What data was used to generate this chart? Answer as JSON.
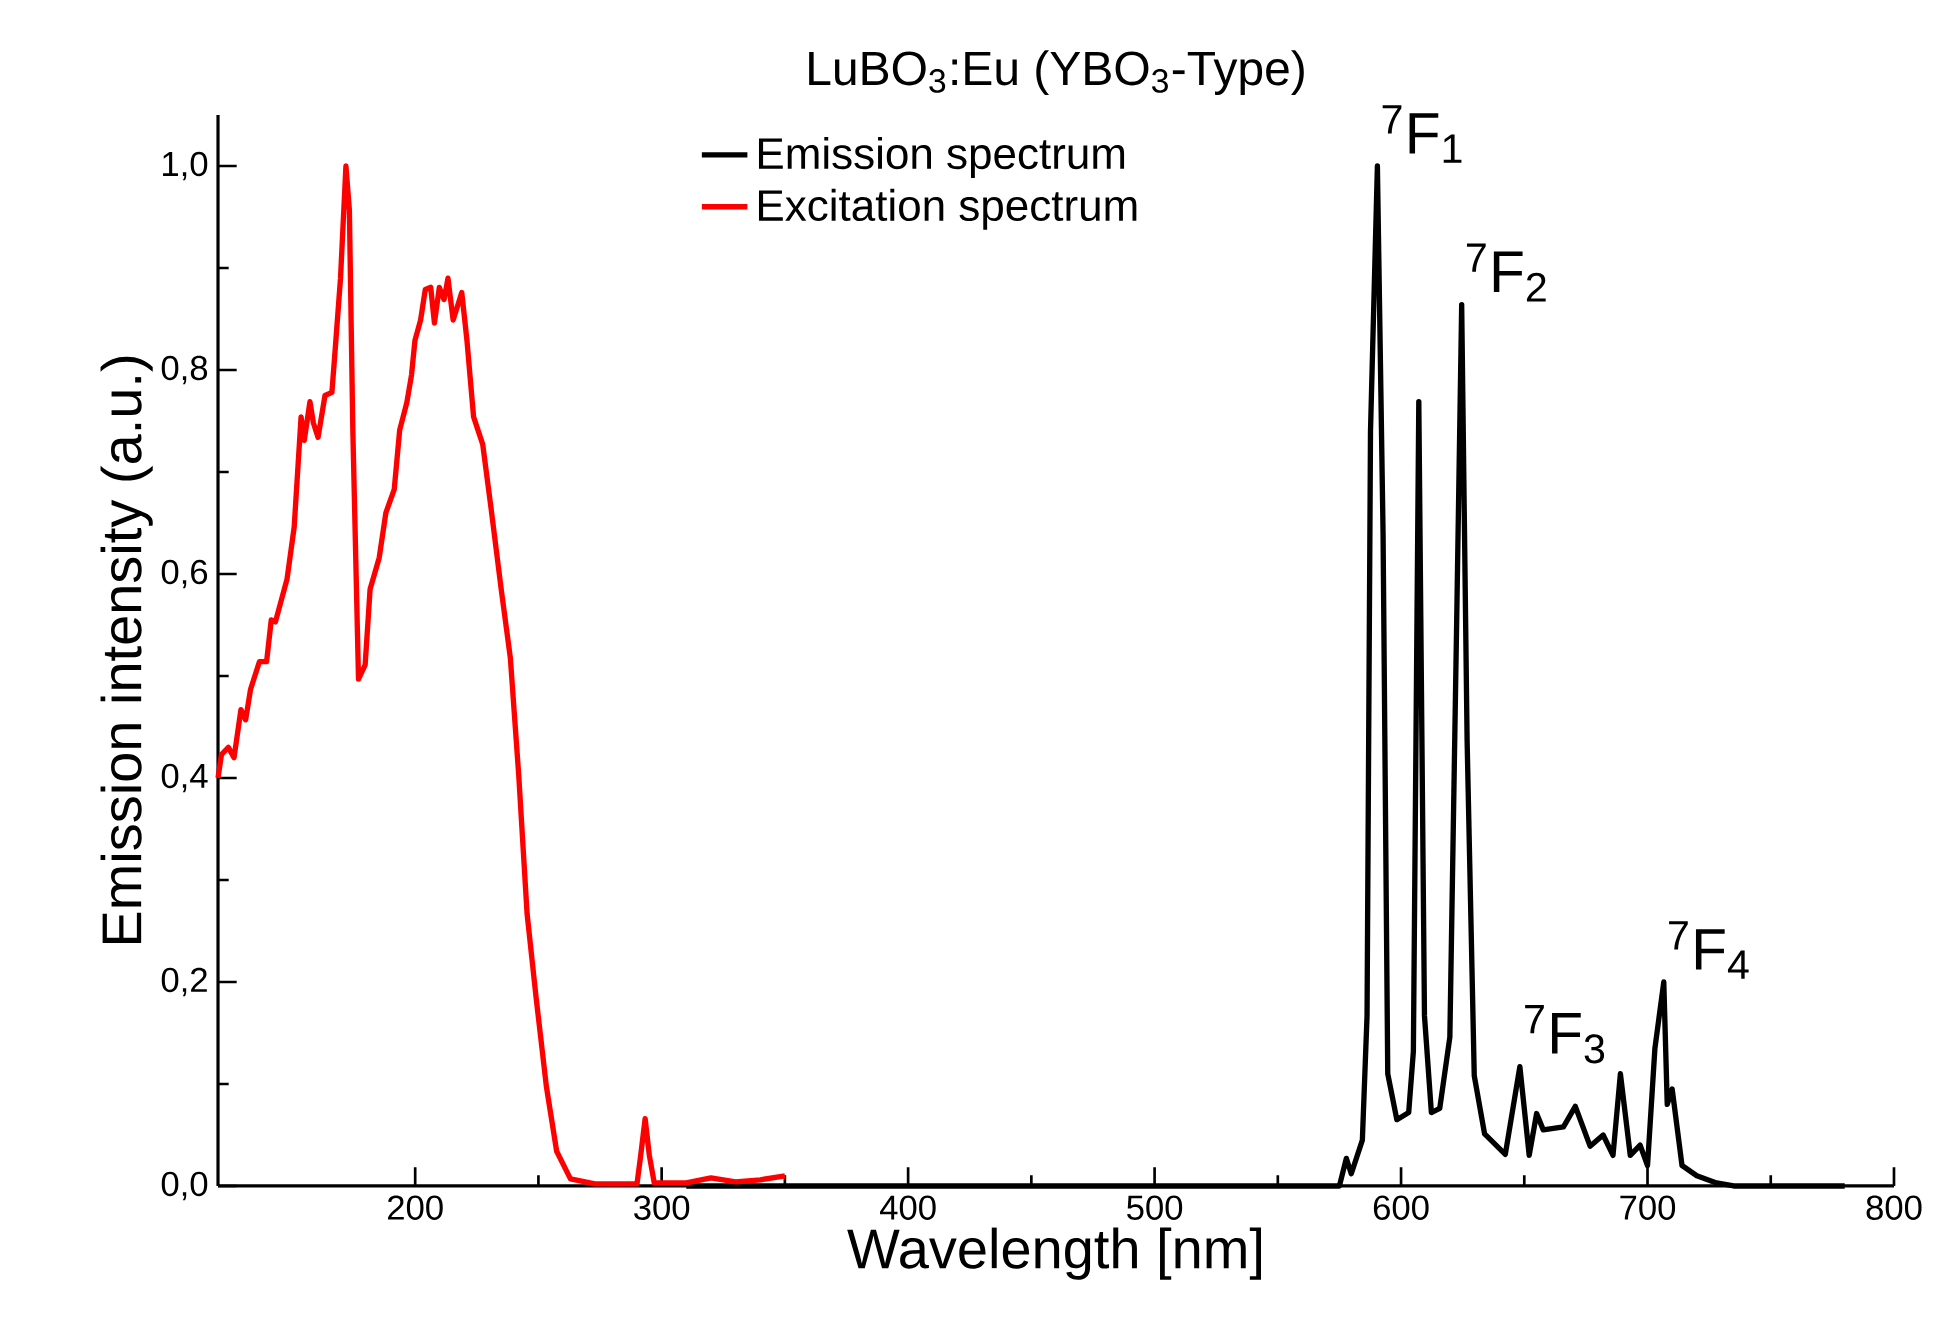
{
  "chart_data": {
    "type": "line",
    "title": "LuBO$_{3}$:Eu (YBO$_{3}$-Type)",
    "xlabel": "Wavelength [nm]",
    "ylabel": "Emission intensity (a.u.)",
    "xlim": [
      120,
      800
    ],
    "ylim": [
      0,
      1.05
    ],
    "xticks": [
      200,
      300,
      400,
      500,
      600,
      700,
      800
    ],
    "yticks": [
      {
        "value": 0,
        "label": "0,0"
      },
      {
        "value": 0.2,
        "label": "0,2"
      },
      {
        "value": 0.4,
        "label": "0,4"
      },
      {
        "value": 0.6,
        "label": "0,6"
      },
      {
        "value": 0.8,
        "label": "0,8"
      },
      {
        "value": 1.0,
        "label": "1,0"
      }
    ],
    "legend": "top",
    "grid": false,
    "marker": "none",
    "line_style": "solid",
    "series": [
      {
        "name": "Emission spectrum",
        "color": "#000000",
        "x": [
          310,
          575,
          577.8,
          579.8,
          584.3,
          586.2,
          587.6,
          590.4,
          592.7,
          594.6,
          598.3,
          603.1,
          605,
          607.2,
          609.5,
          612.3,
          615.7,
          619.8,
          622.7,
          624.6,
          626.8,
          629.7,
          633.9,
          642.3,
          648.2,
          652,
          655,
          657.7,
          665.9,
          670.7,
          676.7,
          682,
          686,
          689,
          693,
          697,
          700,
          703,
          706.6,
          708,
          710,
          714,
          720,
          728,
          735,
          780
        ],
        "values": [
          0,
          0,
          0.027,
          0.012,
          0.045,
          0.167,
          0.74,
          1.0,
          0.64,
          0.11,
          0.065,
          0.072,
          0.132,
          0.769,
          0.167,
          0.072,
          0.076,
          0.146,
          0.573,
          0.864,
          0.437,
          0.108,
          0.051,
          0.031,
          0.117,
          0.03,
          0.071,
          0.055,
          0.058,
          0.078,
          0.039,
          0.05,
          0.03,
          0.11,
          0.03,
          0.04,
          0.02,
          0.135,
          0.2,
          0.08,
          0.095,
          0.02,
          0.01,
          0.003,
          0,
          0
        ]
      },
      {
        "name": "Excitation spectrum",
        "color": "#ff0000",
        "x": [
          120,
          121.4,
          124.2,
          126.5,
          129.3,
          131.2,
          133.2,
          136.8,
          139.7,
          141.6,
          143.3,
          148,
          150.9,
          153.7,
          155,
          157.3,
          158.7,
          160.6,
          163.4,
          166.2,
          167.6,
          169.7,
          171.9,
          173.3,
          174.7,
          177,
          179.7,
          181.7,
          185.4,
          188.1,
          191.5,
          193.7,
          196.6,
          198.5,
          199.9,
          202.2,
          204.1,
          206.3,
          207.8,
          209.8,
          211.7,
          213.3,
          215.4,
          218.9,
          221,
          223.7,
          227.4,
          230.7,
          234.9,
          238.6,
          242,
          245.4,
          249,
          253.2,
          257.4,
          263,
          272.9,
          290,
          291.5,
          293.3,
          295,
          297,
          310,
          320,
          330,
          340,
          350
        ],
        "values": [
          0.4,
          0.423,
          0.43,
          0.42,
          0.467,
          0.457,
          0.487,
          0.514,
          0.514,
          0.555,
          0.553,
          0.595,
          0.646,
          0.754,
          0.731,
          0.769,
          0.748,
          0.734,
          0.775,
          0.778,
          0.822,
          0.89,
          1.0,
          0.957,
          0.741,
          0.497,
          0.511,
          0.585,
          0.616,
          0.66,
          0.683,
          0.741,
          0.768,
          0.795,
          0.829,
          0.849,
          0.879,
          0.881,
          0.846,
          0.881,
          0.869,
          0.89,
          0.849,
          0.876,
          0.829,
          0.754,
          0.727,
          0.666,
          0.585,
          0.518,
          0.403,
          0.267,
          0.186,
          0.098,
          0.034,
          0.007,
          0.002,
          0.002,
          0.03,
          0.066,
          0.03,
          0.003,
          0.003,
          0.008,
          0.004,
          0.006,
          0.01
        ]
      }
    ],
    "annotations": [
      {
        "text": "$^{7}$F$_{1}$",
        "x": 590.4,
        "y": 1.0
      },
      {
        "text": "$^{7}$F$_{2}$",
        "x": 624.6,
        "y": 0.864
      },
      {
        "text": "$^{7}$F$_{3}$",
        "x": 648.2,
        "y": 0.117
      },
      {
        "text": "$^{7}$F$_{4}$",
        "x": 706.6,
        "y": 0.2
      }
    ]
  }
}
